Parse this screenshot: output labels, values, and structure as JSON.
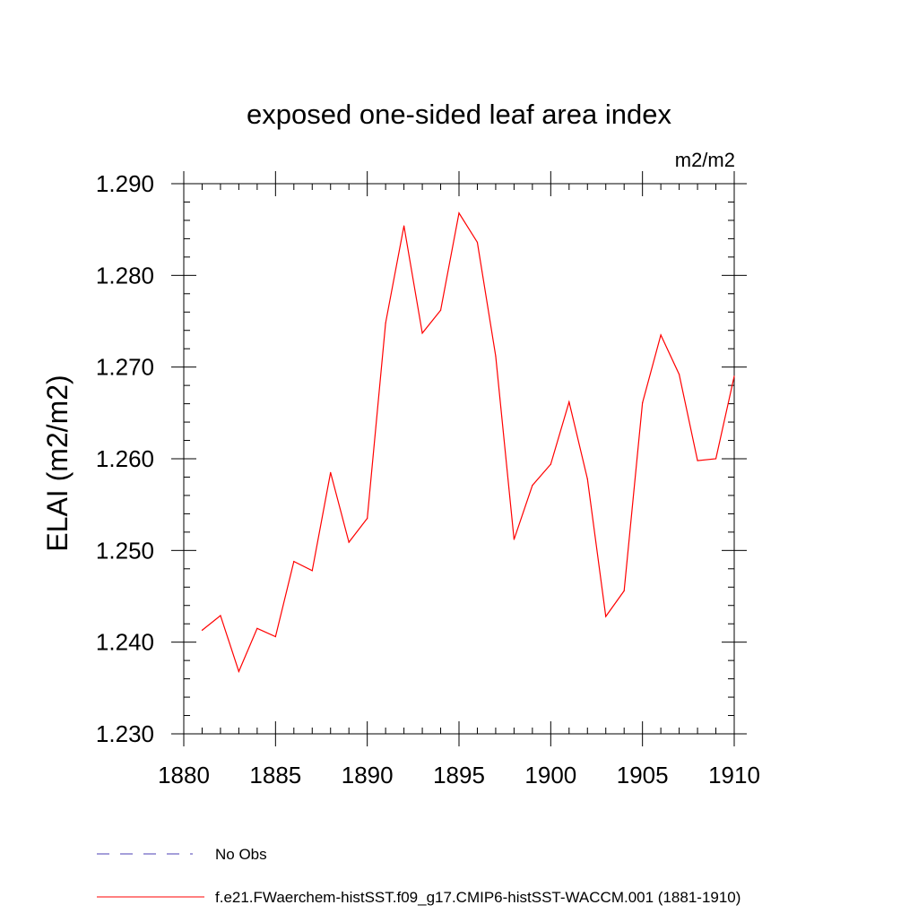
{
  "chart_data": {
    "type": "line",
    "title": "exposed one-sided leaf area index",
    "units": "m2/m2",
    "ylabel": "ELAI  (m2/m2)",
    "xlabel": "",
    "xlim": [
      1880,
      1910
    ],
    "ylim": [
      1.23,
      1.29
    ],
    "x_ticks": [
      "1880",
      "1885",
      "1890",
      "1895",
      "1900",
      "1905",
      "1910"
    ],
    "y_ticks": [
      "1.230",
      "1.240",
      "1.250",
      "1.260",
      "1.270",
      "1.280",
      "1.290"
    ],
    "grid": false,
    "legend_position": "bottom-left",
    "series": [
      {
        "name": "f.e21.FWaerchem-histSST.f09_g17.CMIP6-histSST-WACCM.001 (1881-1910)",
        "color": "#ff0000",
        "line_style": "solid",
        "x": [
          1881,
          1882,
          1883,
          1884,
          1885,
          1886,
          1887,
          1888,
          1889,
          1890,
          1891,
          1892,
          1893,
          1894,
          1895,
          1896,
          1897,
          1898,
          1899,
          1900,
          1901,
          1902,
          1903,
          1904,
          1905,
          1906,
          1907,
          1908,
          1909,
          1910
        ],
        "values": [
          1.2413,
          1.2429,
          1.2368,
          1.2415,
          1.2406,
          1.2488,
          1.2478,
          1.2585,
          1.2509,
          1.2535,
          1.2748,
          1.2854,
          1.2737,
          1.2762,
          1.2868,
          1.2836,
          1.2712,
          1.2512,
          1.2571,
          1.2594,
          1.2662,
          1.2578,
          1.2428,
          1.2456,
          1.2661,
          1.2735,
          1.2692,
          1.2598,
          1.26,
          1.269
        ]
      }
    ],
    "legend": [
      {
        "label": "No Obs",
        "color": "#4b3fb5",
        "line_style": "dashed"
      },
      {
        "label": "f.e21.FWaerchem-histSST.f09_g17.CMIP6-histSST-WACCM.001 (1881-1910)",
        "color": "#ff0000",
        "line_style": "solid"
      }
    ]
  }
}
